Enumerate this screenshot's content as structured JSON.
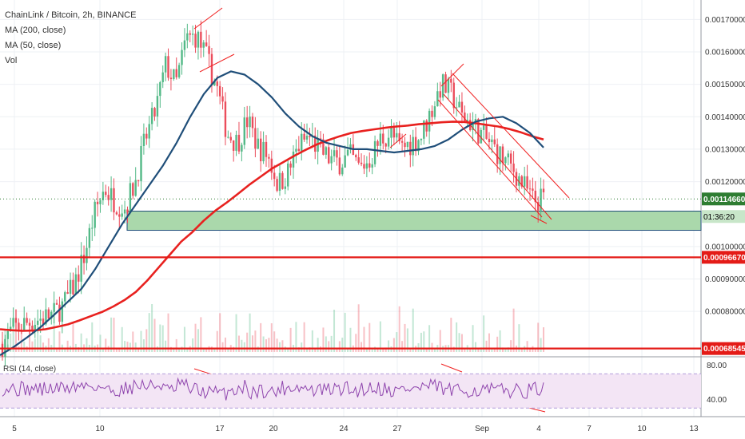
{
  "legend": {
    "title": "ChainLink / Bitcoin, 2h, BINANCE",
    "ma200": "MA (200, close)",
    "ma50": "MA (50, close)",
    "vol": "Vol"
  },
  "rsi_label": "RSI (14, close)",
  "price_axis": {
    "ticks": [
      "0.00170000",
      "0.00160000",
      "0.00150000",
      "0.00140000",
      "0.00130000",
      "0.00120000",
      "0.00100000",
      "0.00090000",
      "0.00080000"
    ],
    "tick_values": [
      0.0017,
      0.0016,
      0.0015,
      0.0014,
      0.0013,
      0.0012,
      0.001,
      0.0009,
      0.0008
    ]
  },
  "badges": {
    "last_price": "0.00114660",
    "countdown": "01:36:20",
    "support_1": "0.00096670",
    "support_2": "0.00068545"
  },
  "rsi_axis": {
    "ticks": [
      "80.00",
      "40.00"
    ],
    "tick_values": [
      80,
      40
    ]
  },
  "time_axis": {
    "labels": [
      "5",
      "10",
      "17",
      "20",
      "24",
      "27",
      "Sep",
      "4",
      "7",
      "10",
      "13"
    ]
  },
  "colors": {
    "ma200": "#e8211f",
    "ma50": "#1f4e79",
    "up": "#53b987",
    "down": "#eb4d5c",
    "zone_fill": "#a5d6a7",
    "zone_border": "#1f4e79",
    "rsi_line": "#8e44ad",
    "rsi_band": "#f3e5f5",
    "trend": "#f02020"
  },
  "chart_data": {
    "type": "candlestick",
    "symbol": "ChainLink / Bitcoin",
    "interval": "2h",
    "exchange": "BINANCE",
    "x_labels": [
      "5",
      "10",
      "17",
      "20",
      "24",
      "27",
      "Sep",
      "4",
      "7",
      "10",
      "13"
    ],
    "ylim": [
      0.00066,
      0.00176
    ],
    "y_ticks": [
      0.0008,
      0.0009,
      0.001,
      0.0012,
      0.0013,
      0.0014,
      0.0015,
      0.0016,
      0.0017
    ],
    "series_close": [
      0.0007,
      0.000745,
      0.00076,
      0.00077,
      0.00078,
      0.00079,
      0.00082,
      0.00088,
      0.00097,
      0.0011,
      0.00118,
      0.00114,
      0.00112,
      0.0012,
      0.00133,
      0.00142,
      0.00156,
      0.0015,
      0.00164,
      0.00165,
      0.00158,
      0.00149,
      0.00135,
      0.00132,
      0.00139,
      0.00131,
      0.00128,
      0.00119,
      0.00123,
      0.00131,
      0.00134,
      0.0013,
      0.00127,
      0.00126,
      0.00128,
      0.00124,
      0.00127,
      0.00133,
      0.00135,
      0.0013,
      0.00132,
      0.00134,
      0.00142,
      0.0015,
      0.00147,
      0.0014,
      0.00138,
      0.00134,
      0.00131,
      0.00127,
      0.00124,
      0.00119,
      0.00114,
      0.001147
    ],
    "ma200": [
      0.000745,
      0.000742,
      0.00074,
      0.000741,
      0.000745,
      0.000752,
      0.00076,
      0.000772,
      0.000785,
      0.000798,
      0.000815,
      0.000835,
      0.00086,
      0.000895,
      0.000935,
      0.000975,
      0.001015,
      0.001045,
      0.00108,
      0.00111,
      0.001135,
      0.001162,
      0.00119,
      0.001215,
      0.00124,
      0.00126,
      0.00128,
      0.001298,
      0.001315,
      0.001328,
      0.00134,
      0.00135,
      0.001356,
      0.001361,
      0.001366,
      0.00137,
      0.001373,
      0.001377,
      0.00138,
      0.001383,
      0.001385,
      0.001384,
      0.00138,
      0.001375,
      0.00137,
      0.001362,
      0.001352,
      0.00134,
      0.00133
    ],
    "ma50": [
      0.000665,
      0.00069,
      0.00072,
      0.000752,
      0.00079,
      0.00083,
      0.00087,
      0.00093,
      0.001,
      0.00107,
      0.00113,
      0.00119,
      0.00125,
      0.00132,
      0.0014,
      0.00147,
      0.00152,
      0.00154,
      0.00153,
      0.0015,
      0.00146,
      0.00141,
      0.00137,
      0.00134,
      0.00132,
      0.00131,
      0.0013,
      0.0013,
      0.001295,
      0.00129,
      0.001295,
      0.0013,
      0.00131,
      0.00133,
      0.00136,
      0.001385,
      0.001395,
      0.0014,
      0.00138,
      0.00135,
      0.001305
    ],
    "support_zone": [
      0.00102,
      0.00105
    ],
    "support_lines": [
      0.0009667,
      0.00068545
    ],
    "last_price": 0.0011466,
    "rsi": {
      "name": "RSI (14, close)",
      "ylim": [
        20,
        90
      ],
      "band": [
        30,
        70
      ],
      "ticks": [
        80,
        40
      ]
    }
  }
}
